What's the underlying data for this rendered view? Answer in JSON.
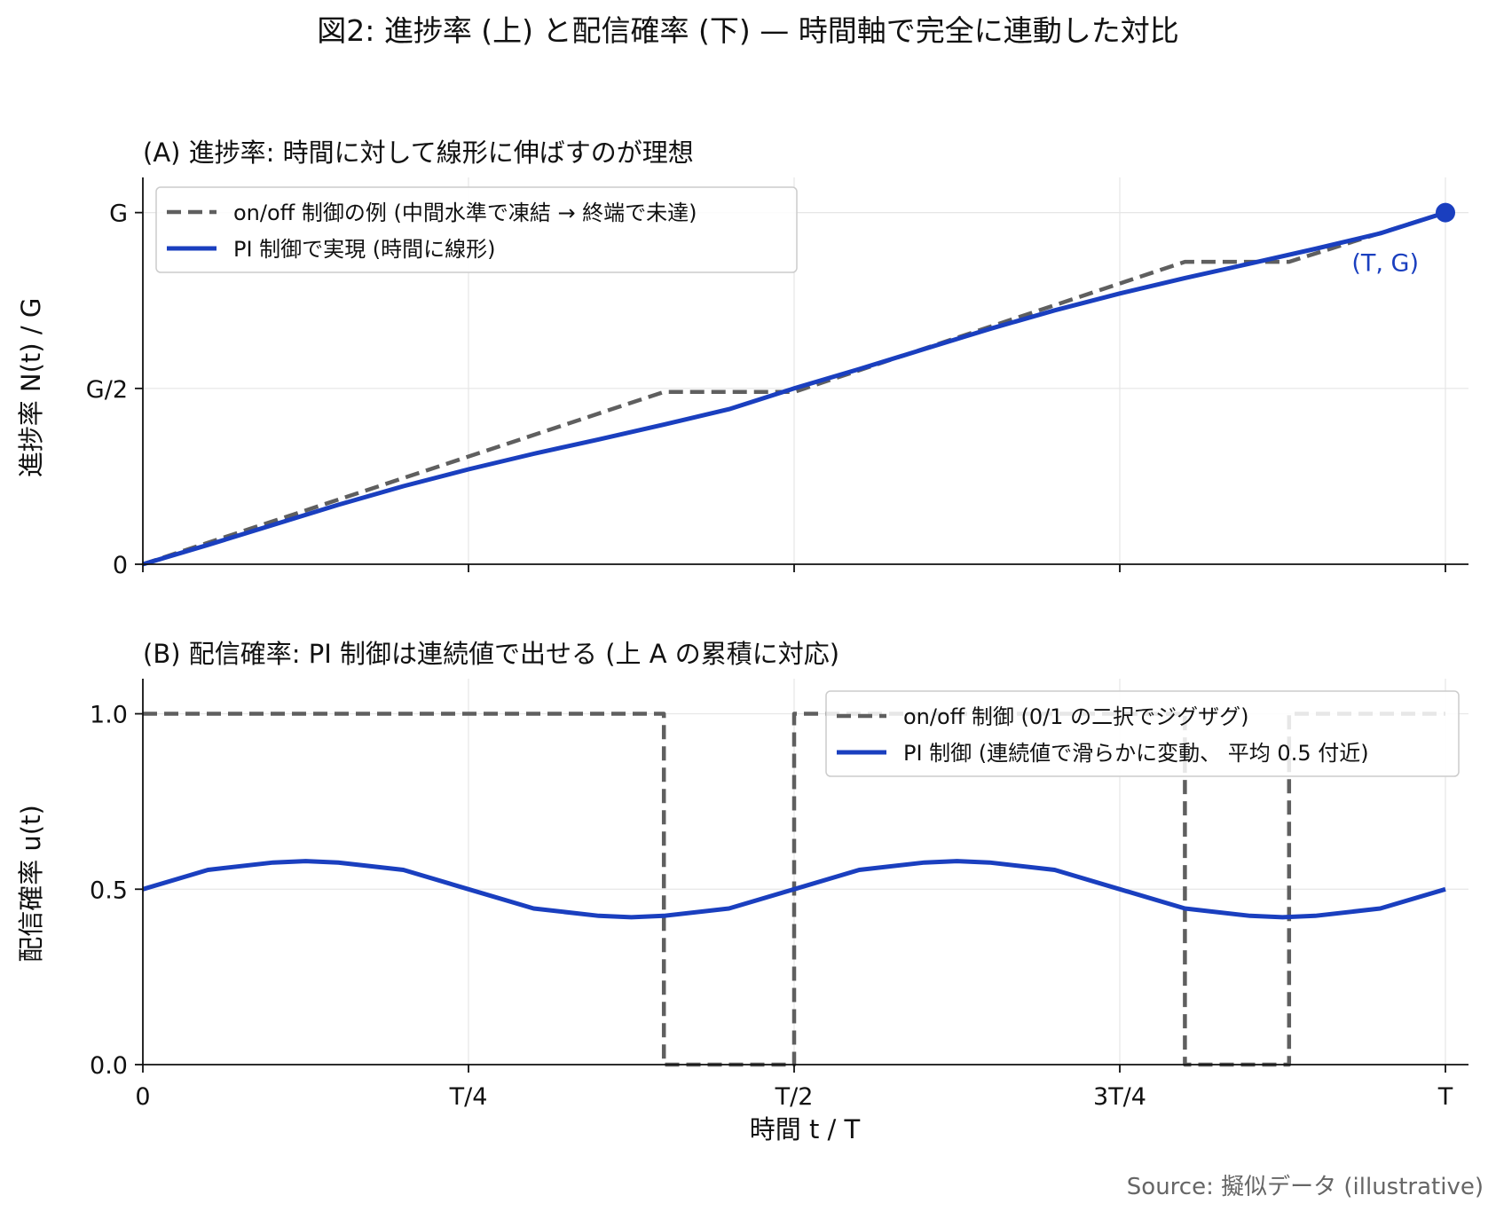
{
  "figure": {
    "suptitle": "図2: 進捗率 (上) と配信確率 (下) — 時間軸で完全に連動した対比",
    "source": "Source: 擬似データ (illustrative)"
  },
  "colors": {
    "pi": "#1a3fbf",
    "onoff": "#5f5f5f"
  },
  "chart_data": [
    {
      "type": "line",
      "title": "(A) 進捗率: 時間に対して線形に伸ばすのが理想",
      "xlabel": "",
      "ylabel": "進捗率 N(t) / G",
      "xlim": [
        0,
        1
      ],
      "ylim": [
        0,
        1.1
      ],
      "x_ticks": [
        {
          "value": 0,
          "label": ""
        },
        {
          "value": 0.25,
          "label": ""
        },
        {
          "value": 0.5,
          "label": ""
        },
        {
          "value": 0.75,
          "label": ""
        },
        {
          "value": 1,
          "label": ""
        }
      ],
      "y_ticks": [
        {
          "value": 0,
          "label": "0"
        },
        {
          "value": 0.5,
          "label": "G/2"
        },
        {
          "value": 1,
          "label": "G"
        }
      ],
      "grid": true,
      "legend_position": "upper-left",
      "series": [
        {
          "name": "on/off 制御の例 (中間水準で凍結 → 終端で未達)",
          "style": "dashed",
          "x": [
            0,
            0.4,
            0.5,
            0.8,
            0.88,
            1.0
          ],
          "y": [
            0,
            0.49,
            0.49,
            0.86,
            0.86,
            1.0
          ]
        },
        {
          "name": "PI 制御で実現 (時間に線形)",
          "style": "solid",
          "x": [
            0,
            0.05,
            0.1,
            0.15,
            0.2,
            0.25,
            0.3,
            0.35,
            0.4,
            0.45,
            0.5,
            0.55,
            0.6,
            0.65,
            0.7,
            0.75,
            0.8,
            0.85,
            0.9,
            0.95,
            1.0
          ],
          "y": [
            0,
            0.055,
            0.112,
            0.169,
            0.222,
            0.27,
            0.314,
            0.355,
            0.397,
            0.441,
            0.5,
            0.555,
            0.612,
            0.669,
            0.722,
            0.77,
            0.814,
            0.855,
            0.897,
            0.941,
            1.0
          ]
        }
      ],
      "annotations": [
        {
          "text": "(T, G)",
          "x": 1.0,
          "y": 1.0,
          "marker": "dot"
        }
      ]
    },
    {
      "type": "line",
      "title": "(B) 配信確率: PI 制御は連続値で出せる (上 A の累積に対応)",
      "xlabel": "時間 t / T",
      "ylabel": "配信確率 u(t)",
      "xlim": [
        0,
        1
      ],
      "ylim": [
        0,
        1.1
      ],
      "x_ticks": [
        {
          "value": 0,
          "label": "0"
        },
        {
          "value": 0.25,
          "label": "T/4"
        },
        {
          "value": 0.5,
          "label": "T/2"
        },
        {
          "value": 0.75,
          "label": "3T/4"
        },
        {
          "value": 1,
          "label": "T"
        }
      ],
      "y_ticks": [
        {
          "value": 0,
          "label": "0.0"
        },
        {
          "value": 0.5,
          "label": "0.5"
        },
        {
          "value": 1,
          "label": "1.0"
        }
      ],
      "grid": true,
      "legend_position": "upper-right",
      "series": [
        {
          "name": "on/off 制御 (0/1 の二択でジグザグ)",
          "style": "dashed-step",
          "x": [
            0,
            0.4,
            0.4,
            0.5,
            0.5,
            0.8,
            0.8,
            0.88,
            0.88,
            1.0
          ],
          "y": [
            1,
            1,
            0,
            0,
            1,
            1,
            0,
            0,
            1,
            1
          ]
        },
        {
          "name": "PI 制御 (連続値で滑らかに変動、 平均 0.5 付近)",
          "style": "solid",
          "x": [
            0,
            0.05,
            0.1,
            0.125,
            0.15,
            0.2,
            0.25,
            0.3,
            0.35,
            0.375,
            0.4,
            0.45,
            0.5,
            0.55,
            0.6,
            0.625,
            0.65,
            0.7,
            0.75,
            0.8,
            0.85,
            0.875,
            0.9,
            0.95,
            1.0
          ],
          "y": [
            0.5,
            0.555,
            0.576,
            0.58,
            0.576,
            0.555,
            0.5,
            0.445,
            0.424,
            0.42,
            0.424,
            0.445,
            0.5,
            0.555,
            0.576,
            0.58,
            0.576,
            0.555,
            0.5,
            0.445,
            0.424,
            0.42,
            0.424,
            0.445,
            0.5
          ]
        }
      ]
    }
  ]
}
